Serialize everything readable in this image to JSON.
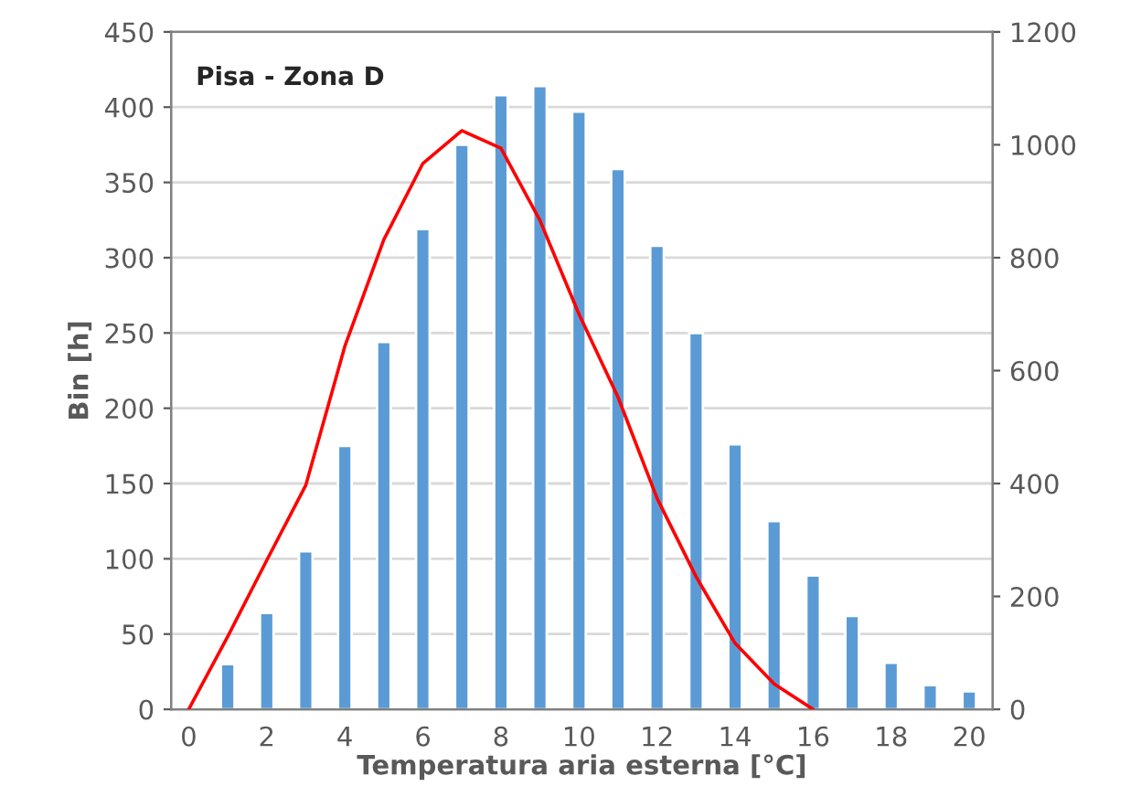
{
  "chart_data": {
    "type": "bar",
    "xlabel": "Temperatura aria esterna [°C]",
    "ylabel": "Bin [h]",
    "annotations": [
      "Pisa - Zona D"
    ],
    "x": [
      1,
      2,
      3,
      4,
      5,
      6,
      7,
      8,
      9,
      10,
      11,
      12,
      13,
      14,
      15,
      16,
      17,
      18,
      19,
      20
    ],
    "series": [
      {
        "color": "#5b9bd5",
        "values": [
          30,
          64,
          105,
          175,
          244,
          319,
          375,
          408,
          414,
          397,
          359,
          308,
          250,
          176,
          125,
          89,
          62,
          31,
          16,
          12
        ]
      },
      {
        "type": "line",
        "axis": "y2",
        "color": "#ff0000",
        "x": [
          0,
          1,
          2,
          3,
          4,
          5,
          6,
          7,
          8,
          9,
          10,
          11,
          12,
          13,
          14,
          15,
          16
        ],
        "values": [
          0,
          129,
          264,
          397,
          643,
          832,
          967,
          1025,
          994,
          866,
          700,
          553,
          374,
          235,
          117,
          45,
          0
        ]
      }
    ],
    "xlim": [
      -0.45,
      20.6
    ],
    "xticks": [
      0,
      2,
      4,
      6,
      8,
      10,
      12,
      14,
      16,
      18,
      20
    ],
    "ylim": [
      0,
      450
    ],
    "yticks": [
      0,
      50,
      100,
      150,
      200,
      250,
      300,
      350,
      400,
      450
    ],
    "y2lim": [
      0,
      1200
    ],
    "y2ticks": [
      0,
      200,
      400,
      600,
      800,
      1000,
      1200
    ],
    "grid": "y",
    "marker": "none",
    "line_style": "solid"
  }
}
